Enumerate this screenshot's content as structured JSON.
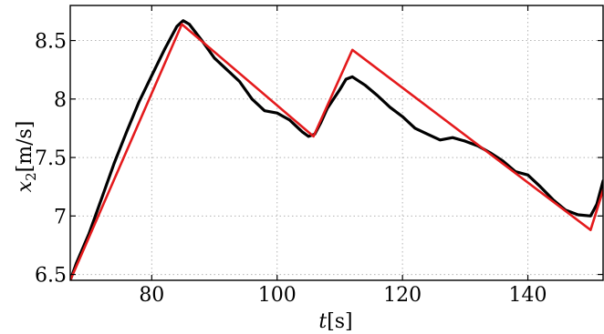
{
  "chart_data": {
    "type": "line",
    "xlabel": {
      "variable": "t",
      "unit": "[s]"
    },
    "ylabel": {
      "variable": "x",
      "subscript": "2",
      "unit": "[m/s]"
    },
    "xlim": [
      67,
      152
    ],
    "ylim": [
      6.45,
      8.8
    ],
    "xticks": [
      80,
      100,
      120,
      140
    ],
    "xtick_labels": [
      "80",
      "100",
      "120",
      "140"
    ],
    "yticks": [
      6.5,
      7,
      7.5,
      8,
      8.5
    ],
    "ytick_labels": [
      "6.5",
      "7",
      "7.5",
      "8",
      "8.5"
    ],
    "grid": true,
    "series": [
      {
        "color": "#000000",
        "points": [
          [
            67,
            6.45
          ],
          [
            68,
            6.6
          ],
          [
            70,
            6.85
          ],
          [
            72,
            7.15
          ],
          [
            74,
            7.45
          ],
          [
            76,
            7.72
          ],
          [
            78,
            7.98
          ],
          [
            80,
            8.2
          ],
          [
            82,
            8.42
          ],
          [
            84,
            8.62
          ],
          [
            85,
            8.67
          ],
          [
            86,
            8.64
          ],
          [
            88,
            8.5
          ],
          [
            90,
            8.35
          ],
          [
            92,
            8.25
          ],
          [
            94,
            8.15
          ],
          [
            96,
            8.0
          ],
          [
            98,
            7.9
          ],
          [
            100,
            7.88
          ],
          [
            102,
            7.82
          ],
          [
            104,
            7.72
          ],
          [
            105,
            7.68
          ],
          [
            106,
            7.7
          ],
          [
            107,
            7.8
          ],
          [
            108,
            7.92
          ],
          [
            110,
            8.08
          ],
          [
            111,
            8.17
          ],
          [
            112,
            8.19
          ],
          [
            114,
            8.12
          ],
          [
            116,
            8.03
          ],
          [
            118,
            7.93
          ],
          [
            120,
            7.85
          ],
          [
            122,
            7.75
          ],
          [
            124,
            7.7
          ],
          [
            126,
            7.65
          ],
          [
            128,
            7.67
          ],
          [
            130,
            7.64
          ],
          [
            132,
            7.6
          ],
          [
            134,
            7.54
          ],
          [
            136,
            7.47
          ],
          [
            138,
            7.38
          ],
          [
            140,
            7.35
          ],
          [
            142,
            7.25
          ],
          [
            144,
            7.14
          ],
          [
            146,
            7.05
          ],
          [
            148,
            7.01
          ],
          [
            150,
            7.0
          ],
          [
            151,
            7.1
          ],
          [
            152,
            7.3
          ]
        ]
      },
      {
        "color": "#e41a1c",
        "points": [
          [
            67,
            6.45
          ],
          [
            84.8,
            8.64
          ],
          [
            105.8,
            7.68
          ],
          [
            112,
            8.42
          ],
          [
            150,
            6.88
          ],
          [
            152,
            7.22
          ]
        ]
      }
    ]
  }
}
